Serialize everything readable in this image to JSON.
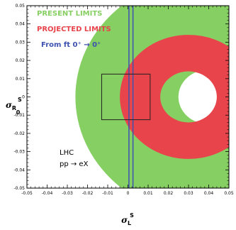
{
  "chart_data": {
    "type": "scatter",
    "title": "",
    "xlabel_main": "σ",
    "xlabel_sub": "L",
    "xlabel_sup": "S",
    "ylabel_main": "σ",
    "ylabel_sub": "0",
    "ylabel_sup": "S",
    "ylabel_subscript_r": "R",
    "xlim": [
      -0.05,
      0.05
    ],
    "ylim": [
      -0.05,
      0.05
    ],
    "xticks": [
      "-0.05",
      "-0.04",
      "-0.03",
      "-0.02",
      "-0.01",
      "0",
      "0.01",
      "0.02",
      "0.03",
      "0.04",
      "0.05"
    ],
    "yticks": [
      "-0.05",
      "-0.04",
      "-0.03",
      "-0.02",
      "-0.01",
      "0",
      "0.01",
      "0.02",
      "0.03",
      "0.04",
      "0.05"
    ],
    "grid": false,
    "series": [
      {
        "name": "PRESENT LIMITS",
        "color": "#86cf63",
        "shape": "annulus",
        "center": [
          0.04,
          0.0
        ],
        "inner_radius": 0.015,
        "outer_radius": 0.066
      },
      {
        "name": "PROJECTED LIMITS",
        "color": "#e8444c",
        "shape": "annulus",
        "center": [
          0.03,
          0.0
        ],
        "inner_radius": 0.014,
        "outer_radius": 0.034
      },
      {
        "name": "From ft 0⁺ → 0⁺",
        "color": "#3e52b0",
        "shape": "band",
        "x": [
          0.0005,
          0.0025
        ]
      }
    ],
    "box": {
      "x": [
        -0.013,
        0.011
      ],
      "y": [
        -0.0125,
        0.0125
      ]
    },
    "legend": {
      "present": "PRESENT LIMITS",
      "projected": "PROJECTED LIMITS",
      "ft": "From ft 0⁺ → 0⁺"
    },
    "annotation": {
      "line1": "LHC",
      "line2": "pp → eX"
    }
  },
  "colors": {
    "present": "#86cf63",
    "projected": "#e8444c",
    "ft": "#3e52b0",
    "box": "#222222"
  }
}
